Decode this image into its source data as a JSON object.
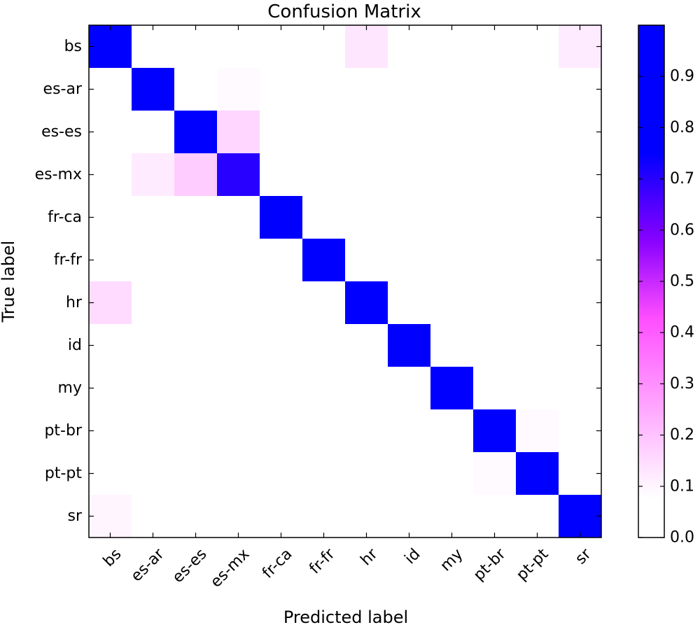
{
  "chart_data": {
    "type": "heatmap",
    "title": "Confusion Matrix",
    "xlabel": "Predicted label",
    "ylabel": "True label",
    "x_categories": [
      "bs",
      "es-ar",
      "es-es",
      "es-mx",
      "fr-ca",
      "fr-fr",
      "hr",
      "id",
      "my",
      "pt-br",
      "pt-pt",
      "sr"
    ],
    "y_categories": [
      "bs",
      "es-ar",
      "es-es",
      "es-mx",
      "fr-ca",
      "fr-fr",
      "hr",
      "id",
      "my",
      "pt-br",
      "pt-pt",
      "sr"
    ],
    "values": [
      [
        0.75,
        0,
        0,
        0,
        0,
        0,
        0.13,
        0,
        0,
        0,
        0,
        0.12
      ],
      [
        0,
        0.84,
        0.07,
        0.09,
        0,
        0,
        0,
        0,
        0,
        0,
        0,
        0
      ],
      [
        0,
        0.06,
        0.78,
        0.16,
        0,
        0,
        0,
        0,
        0,
        0,
        0,
        0
      ],
      [
        0,
        0.12,
        0.18,
        0.7,
        0,
        0,
        0,
        0,
        0,
        0,
        0,
        0
      ],
      [
        0,
        0,
        0,
        0,
        0.96,
        0.04,
        0,
        0,
        0,
        0,
        0,
        0
      ],
      [
        0,
        0,
        0,
        0,
        0.08,
        0.93,
        0,
        0,
        0,
        0,
        0,
        0
      ],
      [
        0.15,
        0,
        0,
        0,
        0,
        0,
        0.82,
        0,
        0,
        0,
        0,
        0.02
      ],
      [
        0,
        0,
        0,
        0,
        0,
        0,
        0,
        0.98,
        0.02,
        0,
        0,
        0
      ],
      [
        0,
        0,
        0,
        0,
        0,
        0,
        0,
        0.02,
        0.98,
        0,
        0,
        0
      ],
      [
        0,
        0,
        0,
        0,
        0,
        0,
        0,
        0,
        0,
        0.92,
        0.09,
        0
      ],
      [
        0,
        0,
        0,
        0,
        0,
        0,
        0,
        0,
        0,
        0.09,
        0.91,
        0
      ],
      [
        0.1,
        0,
        0,
        0,
        0,
        0,
        0.02,
        0,
        0,
        0,
        0,
        0.85
      ]
    ],
    "colormap": "gnuplot2_r",
    "colorbar": {
      "range": [
        0,
        1
      ],
      "ticks": [
        "0.0",
        "0.1",
        "0.2",
        "0.3",
        "0.4",
        "0.5",
        "0.6",
        "0.7",
        "0.8",
        "0.9"
      ],
      "tick_values": [
        0,
        0.1,
        0.2,
        0.3,
        0.4,
        0.5,
        0.6,
        0.7,
        0.8,
        0.9
      ]
    },
    "grid": false,
    "legend": "none"
  }
}
